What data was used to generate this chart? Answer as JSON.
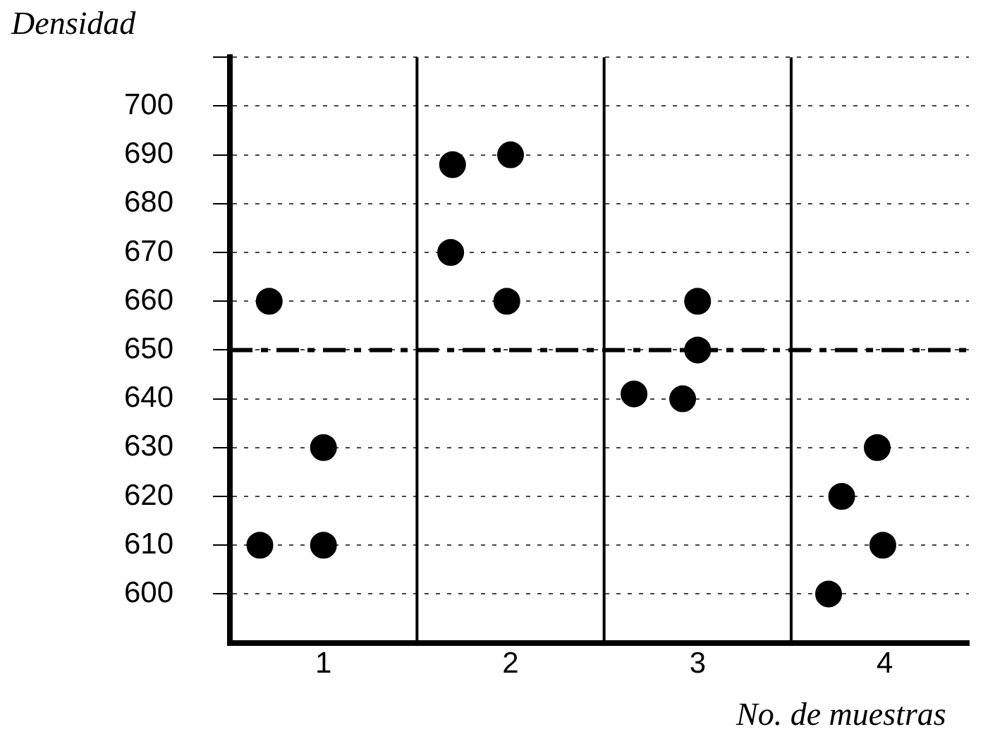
{
  "chart_data": {
    "type": "scatter",
    "ylabel": "Densidad",
    "xlabel": "No. de muestras",
    "x": [
      0.71,
      1.0,
      0.66,
      1.0,
      1.69,
      2.0,
      1.68,
      1.98,
      2.66,
      2.92,
      3.0,
      3.0,
      3.96,
      3.77,
      3.99,
      3.7
    ],
    "series": [
      {
        "color": "#000000",
        "values": [
          660,
          630,
          610,
          610,
          688,
          690,
          670,
          660,
          641,
          640,
          660,
          650,
          630,
          620,
          610,
          600
        ]
      }
    ],
    "xlim": [
      0.5,
      4.45
    ],
    "xticks": [
      1,
      2,
      3,
      4
    ],
    "ylim": [
      590,
      710
    ],
    "yticks": [
      600,
      610,
      620,
      630,
      640,
      650,
      660,
      670,
      680,
      690,
      700,
      {
        "value": 710,
        "label": null
      }
    ],
    "grid": "y",
    "marker": "circle",
    "legend": false,
    "ref_lines": [
      {
        "axis": "y",
        "value": 650,
        "line_style": "dashed"
      },
      {
        "axis": "x",
        "value": 1.5
      },
      {
        "axis": "x",
        "value": 2.5
      },
      {
        "axis": "x",
        "value": 3.5
      }
    ]
  }
}
